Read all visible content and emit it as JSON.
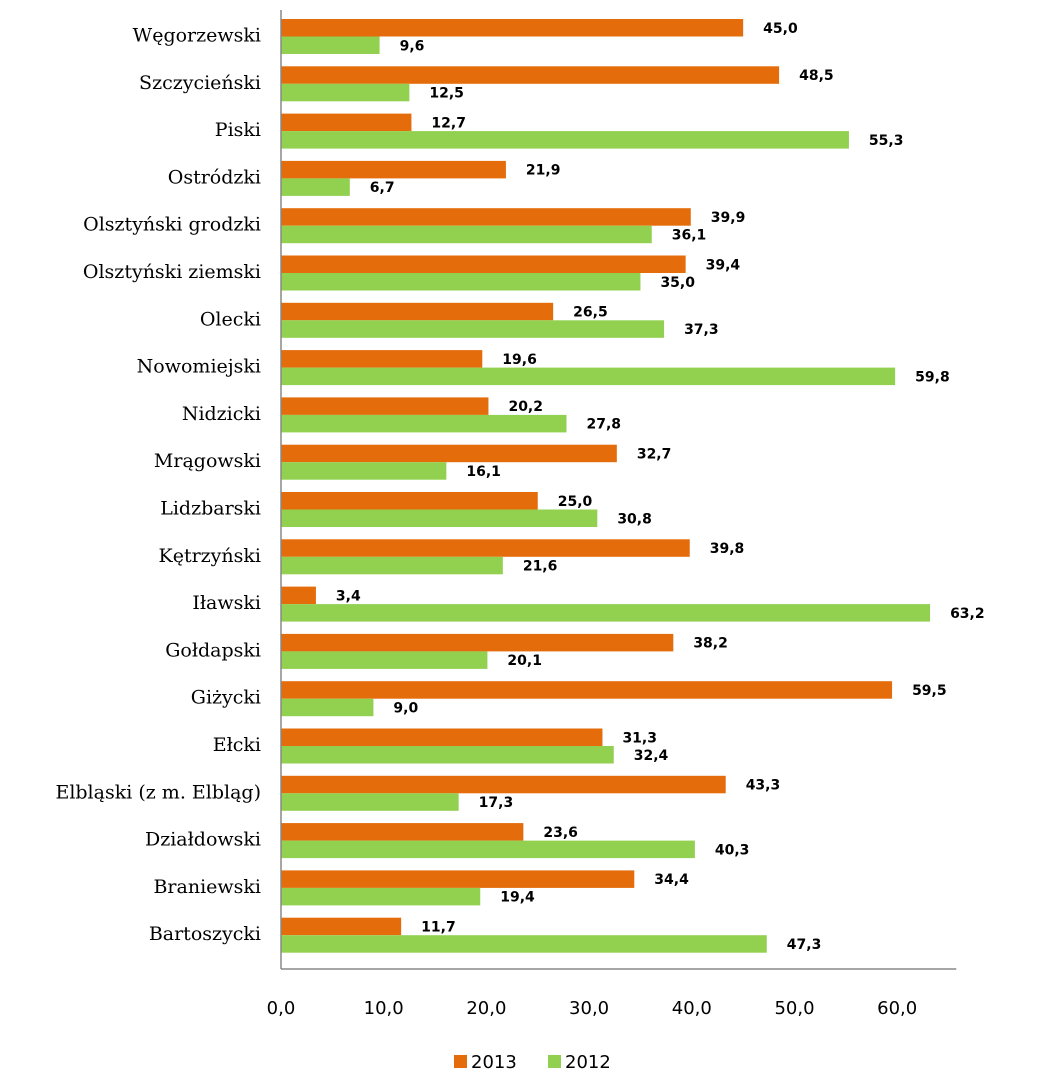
{
  "chart_data": {
    "type": "bar",
    "orientation": "horizontal",
    "categories": [
      "Węgorzewski",
      "Szczycieński",
      "Piski",
      "Ostródzki",
      "Olsztyński grodzki",
      "Olsztyński ziemski",
      "Olecki",
      "Nowomiejski",
      "Nidzicki",
      "Mrągowski",
      "Lidzbarski",
      "Kętrzyński",
      "Iławski",
      "Gołdapski",
      "Giżycki",
      "Ełcki",
      "Elbląski (z m. Elbląg)",
      "Działdowski",
      "Braniewski",
      "Bartoszycki"
    ],
    "series": [
      {
        "name": "2013",
        "color": "#e46c0a",
        "values": [
          45.0,
          48.5,
          12.7,
          21.9,
          39.9,
          39.4,
          26.5,
          19.6,
          20.2,
          32.7,
          25.0,
          39.8,
          3.4,
          38.2,
          59.5,
          31.3,
          43.3,
          23.6,
          34.4,
          11.7
        ],
        "labels": [
          "45,0",
          "48,5",
          "12,7",
          "21,9",
          "39,9",
          "39,4",
          "26,5",
          "19,6",
          "20,2",
          "32,7",
          "25,0",
          "39,8",
          "3,4",
          "38,2",
          "59,5",
          "31,3",
          "43,3",
          "23,6",
          "34,4",
          "11,7"
        ]
      },
      {
        "name": "2012",
        "color": "#92d050",
        "values": [
          9.6,
          12.5,
          55.3,
          6.7,
          36.1,
          35.0,
          37.3,
          59.8,
          27.8,
          16.1,
          30.8,
          21.6,
          63.2,
          20.1,
          9.0,
          32.4,
          17.3,
          40.3,
          19.4,
          47.3
        ],
        "labels": [
          "9,6",
          "12,5",
          "55,3",
          "6,7",
          "36,1",
          "35,0",
          "37,3",
          "59,8",
          "27,8",
          "16,1",
          "30,8",
          "21,6",
          "63,2",
          "20,1",
          "9,0",
          "32,4",
          "17,3",
          "40,3",
          "19,4",
          "47,3"
        ]
      }
    ],
    "xlim": [
      0,
      64
    ],
    "xticks": [
      0,
      10,
      20,
      30,
      40,
      50,
      60
    ],
    "xtick_labels": [
      "0,0",
      "10,0",
      "20,0",
      "30,0",
      "40,0",
      "50,0",
      "60,0"
    ],
    "legend_position": "bottom",
    "grid": false
  }
}
